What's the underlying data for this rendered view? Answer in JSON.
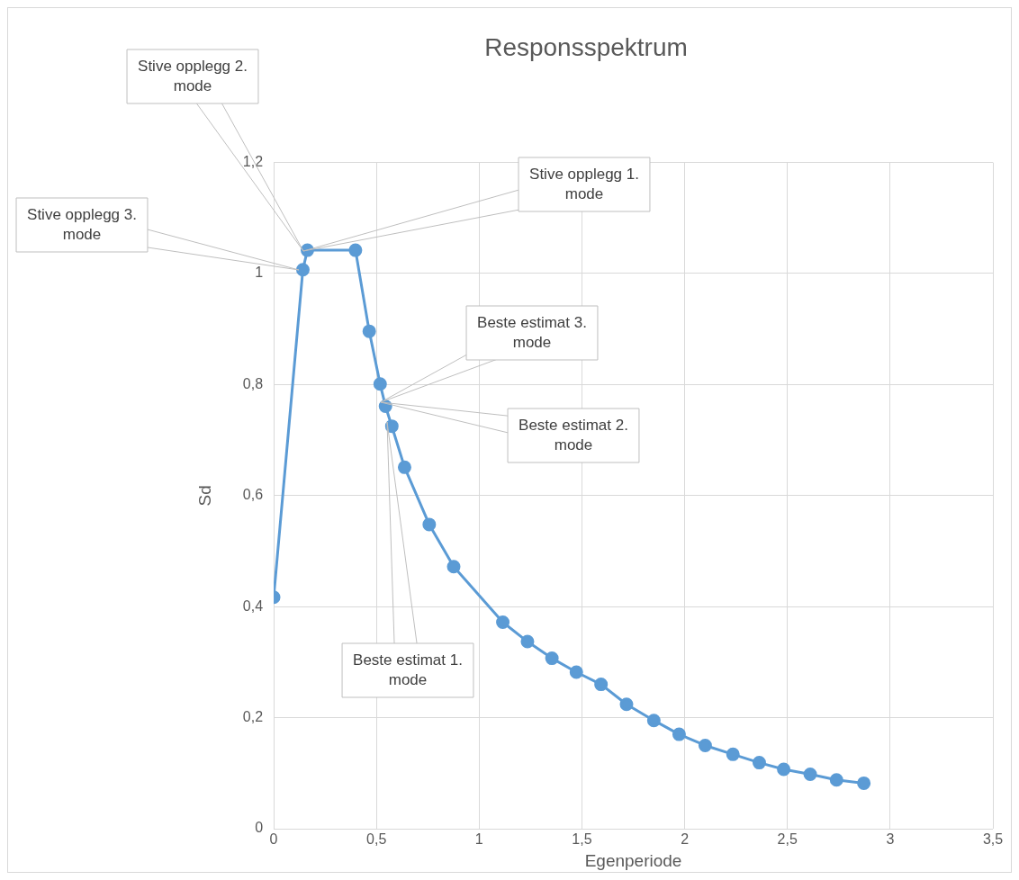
{
  "chart_data": {
    "type": "line",
    "title": "Responsspektrum",
    "xlabel": "Egenperiode",
    "ylabel": "Sd",
    "x": [
      0,
      0.142,
      0.164,
      0.398,
      0.465,
      0.518,
      0.544,
      0.575,
      0.637,
      0.757,
      0.876,
      1.115,
      1.235,
      1.354,
      1.473,
      1.593,
      1.717,
      1.85,
      1.973,
      2.1,
      2.235,
      2.363,
      2.482,
      2.611,
      2.739,
      2.872
    ],
    "series": [
      {
        "color": "#5b9bd5",
        "values": [
          0.417,
          1.007,
          1.042,
          1.042,
          0.896,
          0.801,
          0.761,
          0.725,
          0.651,
          0.548,
          0.472,
          0.372,
          0.337,
          0.307,
          0.282,
          0.26,
          0.224,
          0.195,
          0.17,
          0.15,
          0.134,
          0.119,
          0.107,
          0.098,
          0.088,
          0.082
        ]
      }
    ],
    "xlim": [
      0,
      3.5
    ],
    "xticks": [
      {
        "value": 0,
        "label": "0"
      },
      {
        "value": 0.5,
        "label": "0,5"
      },
      {
        "value": 1,
        "label": "1"
      },
      {
        "value": 1.5,
        "label": "1,5"
      },
      {
        "value": 2,
        "label": "2"
      },
      {
        "value": 2.5,
        "label": "2,5"
      },
      {
        "value": 3,
        "label": "3"
      },
      {
        "value": 3.5,
        "label": "3,5"
      }
    ],
    "ylim": [
      0,
      1.2
    ],
    "yticks": [
      {
        "value": 0,
        "label": "0"
      },
      {
        "value": 0.2,
        "label": "0,2"
      },
      {
        "value": 0.4,
        "label": "0,4"
      },
      {
        "value": 0.6,
        "label": "0,6"
      },
      {
        "value": 0.8,
        "label": "0,8"
      },
      {
        "value": 1,
        "label": "1"
      },
      {
        "value": 1.2,
        "label": "1,2"
      }
    ],
    "grid": true,
    "marker": "circle",
    "line_style": "solid",
    "legend": false,
    "annotations": [
      "Stive opplegg 2. mode",
      "Stive opplegg 1. mode",
      "Stive opplegg 3. mode",
      "Beste estimat 3. mode",
      "Beste estimat 2. mode",
      "Beste estimat 1. mode"
    ]
  }
}
